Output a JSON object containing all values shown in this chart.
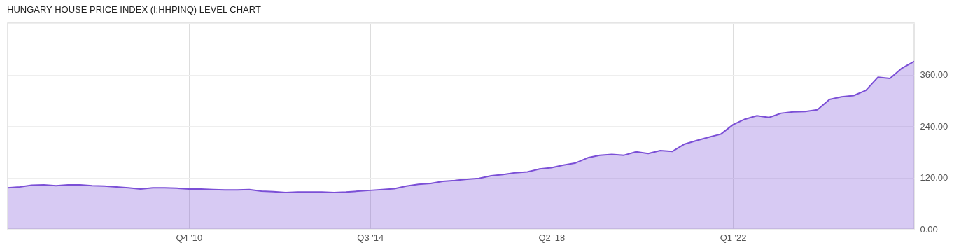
{
  "chart_data": {
    "type": "area",
    "title": "HUNGARY HOUSE PRICE INDEX (I:HHPINQ) LEVEL CHART",
    "x": [
      "2007-01",
      "2007-04",
      "2007-07",
      "2007-10",
      "2008-01",
      "2008-04",
      "2008-07",
      "2008-10",
      "2009-01",
      "2009-04",
      "2009-07",
      "2009-10",
      "2010-01",
      "2010-04",
      "2010-07",
      "2010-10",
      "2011-01",
      "2011-04",
      "2011-07",
      "2011-10",
      "2012-01",
      "2012-04",
      "2012-07",
      "2012-10",
      "2013-01",
      "2013-04",
      "2013-07",
      "2013-10",
      "2014-01",
      "2014-04",
      "2014-07",
      "2014-10",
      "2015-01",
      "2015-04",
      "2015-07",
      "2015-10",
      "2016-01",
      "2016-04",
      "2016-07",
      "2016-10",
      "2017-01",
      "2017-04",
      "2017-07",
      "2017-10",
      "2018-01",
      "2018-04",
      "2018-07",
      "2018-10",
      "2019-01",
      "2019-04",
      "2019-07",
      "2019-10",
      "2020-01",
      "2020-04",
      "2020-07",
      "2020-10",
      "2021-01",
      "2021-04",
      "2021-07",
      "2021-10",
      "2022-01",
      "2022-04",
      "2022-07",
      "2022-10",
      "2023-01",
      "2023-04",
      "2023-07",
      "2023-10",
      "2024-01",
      "2024-04",
      "2024-07",
      "2024-10",
      "2025-01",
      "2025-04",
      "2025-07",
      "2025-10"
    ],
    "series": [
      {
        "color": "#7b4fd6",
        "values": [
          96,
          98,
          102,
          103,
          101,
          103,
          103,
          101,
          100,
          98,
          96,
          93,
          96,
          96,
          95,
          93,
          93,
          92,
          91,
          91,
          92,
          88,
          87,
          85,
          86,
          86,
          86,
          85,
          86,
          88,
          90,
          92,
          94,
          100,
          104,
          106,
          111,
          113,
          116,
          118,
          124,
          127,
          131,
          133,
          140,
          143,
          149,
          154,
          166,
          172,
          174,
          172,
          180,
          176,
          183,
          181,
          198,
          206,
          214,
          221,
          243,
          256,
          264,
          260,
          270,
          273,
          274,
          278,
          302,
          308,
          311,
          323,
          354,
          351,
          375,
          391
        ]
      }
    ],
    "xlim": [
      "2007-01",
      "2025-10"
    ],
    "xticks": [
      {
        "value": "2010-10",
        "label": "Q4 '10"
      },
      {
        "value": "2014-07",
        "label": "Q3 '14"
      },
      {
        "value": "2018-04",
        "label": "Q2 '18"
      },
      {
        "value": "2022-01",
        "label": "Q1 '22"
      }
    ],
    "ylim": [
      0,
      480
    ],
    "yticks": [
      {
        "value": 0,
        "label": "0.00"
      },
      {
        "value": 120,
        "label": "120.00"
      },
      {
        "value": 240,
        "label": "240.00"
      },
      {
        "value": 360,
        "label": "360.00"
      },
      {
        "value": 480,
        "label": null
      }
    ],
    "grid": true
  }
}
